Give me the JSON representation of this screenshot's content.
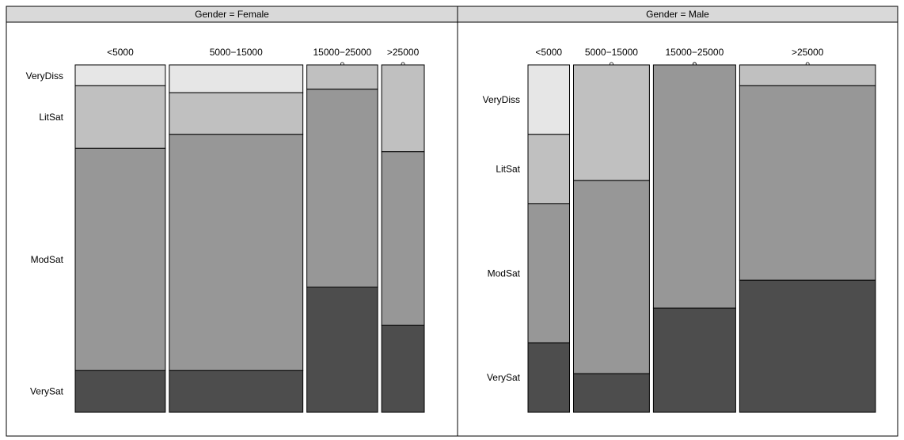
{
  "colors": {
    "VeryDiss": "#e6e6e6",
    "LitSat": "#c0c0c0",
    "ModSat": "#979797",
    "VerySat": "#4d4d4d",
    "strip_bg": "#d9d9d9",
    "border": "#000000"
  },
  "chart_data": {
    "type": "mosaic",
    "levels": [
      "VeryDiss",
      "LitSat",
      "ModSat",
      "VerySat"
    ],
    "panels": [
      {
        "title": "Gender = Female",
        "columns": [
          {
            "label": "<5000",
            "weight": 112,
            "proportions": [
              0.06,
              0.18,
              0.64,
              0.12
            ]
          },
          {
            "label": "5000−15000",
            "weight": 166,
            "proportions": [
              0.08,
              0.12,
              0.68,
              0.12
            ]
          },
          {
            "label": "15000−25000",
            "weight": 88,
            "proportions": [
              0.0,
              0.07,
              0.57,
              0.36
            ]
          },
          {
            "label": ">25000",
            "weight": 53,
            "proportions": [
              0.0,
              0.25,
              0.5,
              0.25
            ]
          }
        ]
      },
      {
        "title": "Gender = Male",
        "columns": [
          {
            "label": "<5000",
            "weight": 52,
            "proportions": [
              0.2,
              0.2,
              0.4,
              0.2
            ]
          },
          {
            "label": "5000−15000",
            "weight": 95,
            "proportions": [
              0.0,
              0.333,
              0.556,
              0.111
            ]
          },
          {
            "label": "15000−25000",
            "weight": 103,
            "proportions": [
              0.0,
              0.0,
              0.7,
              0.3
            ]
          },
          {
            "label": ">25000",
            "weight": 170,
            "proportions": [
              0.0,
              0.06,
              0.56,
              0.38
            ]
          }
        ]
      }
    ]
  }
}
